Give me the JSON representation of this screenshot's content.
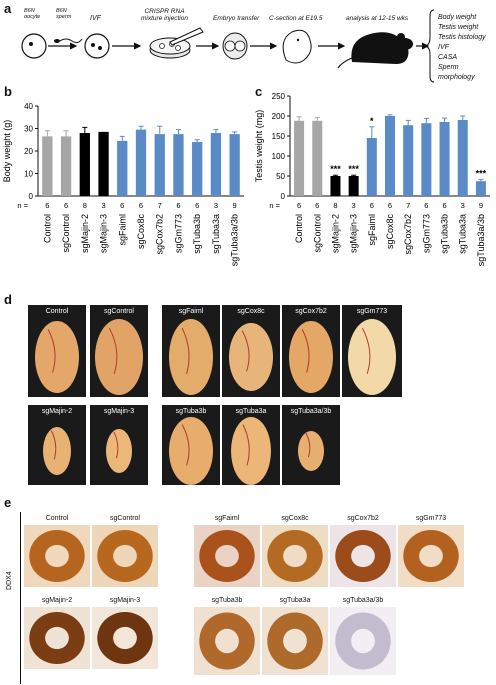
{
  "panels": {
    "a": "a",
    "b": "b",
    "c": "c",
    "d": "d",
    "e": "e"
  },
  "workflow": {
    "oocyte_label": "B6N\noocyte",
    "sperm_label": "B6N\nsperm",
    "ivf": "IVF",
    "crispr": "CRISPR RNA\nmixture injection",
    "embryo": "Embryo transfer",
    "csection": "C-section at E19.5",
    "analysis": "analysis at 12-15 wks",
    "readouts": [
      "Body weight",
      "Testis weight",
      "Testis histology",
      "IVF",
      "CASA",
      "Sperm morphology"
    ]
  },
  "chart_data": [
    {
      "type": "bar",
      "ylabel": "Body weight (g)",
      "ylim": [
        0,
        40
      ],
      "yticks": [
        0,
        10,
        20,
        30,
        40
      ],
      "categories": [
        "Control",
        "sgControl",
        "sgMajin-2",
        "sgMajin-3",
        "sgFaiml",
        "sgCox8c",
        "sgCox7b2",
        "sgGm773",
        "sgTuba3b",
        "sgTuba3a",
        "sgTuba3a/3b"
      ],
      "values": [
        26.5,
        26.5,
        28,
        28.5,
        24.5,
        29.5,
        27.5,
        27.5,
        24,
        28,
        27.5
      ],
      "errors": [
        2.5,
        2.5,
        2.5,
        0,
        2,
        1.5,
        3.5,
        2,
        1,
        1.5,
        1
      ],
      "n": [
        "6",
        "6",
        "8",
        "3",
        "6",
        "6",
        "7",
        "6",
        "6",
        "3",
        "9"
      ],
      "n_label": "n ="
    },
    {
      "type": "bar",
      "ylabel": "Testis weight (mg)",
      "ylim": [
        0,
        250
      ],
      "yticks": [
        0,
        50,
        100,
        150,
        200,
        250
      ],
      "categories": [
        "Control",
        "sgControl",
        "sgMajin-2",
        "sgMajin-3",
        "sgFaiml",
        "sgCox8c",
        "sgCox7b2",
        "sgGm773",
        "sgTuba3b",
        "sgTuba3a",
        "sgTuba3a/3b"
      ],
      "values": [
        188,
        188,
        50,
        50,
        145,
        200,
        177,
        182,
        185,
        190,
        37
      ],
      "errors": [
        10,
        8,
        2,
        2,
        28,
        3,
        12,
        12,
        10,
        10,
        4
      ],
      "significance": [
        "",
        "",
        "***",
        "***",
        "*",
        "",
        "",
        "",
        "",
        "",
        "***"
      ],
      "n": [
        "6",
        "6",
        "8",
        "3",
        "6",
        "6",
        "7",
        "6",
        "6",
        "3",
        "9"
      ],
      "n_label": "n ="
    }
  ],
  "colors": {
    "grey": "#a6a6a6",
    "black": "#000000",
    "blue": "#5b8bc6"
  },
  "bar_colors": [
    "grey",
    "grey",
    "black",
    "black",
    "blue",
    "blue",
    "blue",
    "blue",
    "blue",
    "blue",
    "blue"
  ],
  "panel_d": {
    "labels": [
      "Control",
      "sgControl",
      "sgFaiml",
      "sgCox8c",
      "sgCox7b2",
      "sgGm773",
      "sgMajin-2",
      "sgMajin-3",
      "sgTuba3b",
      "sgTuba3a",
      "sgTuba3a/3b"
    ]
  },
  "panel_e": {
    "stain": "DDX4",
    "labels": [
      "Control",
      "sgControl",
      "sgFaiml",
      "sgCox8c",
      "sgCox7b2",
      "sgGm773",
      "sgMajin-2",
      "sgMajin-3",
      "sgTuba3b",
      "sgTuba3a",
      "sgTuba3a/3b"
    ]
  }
}
